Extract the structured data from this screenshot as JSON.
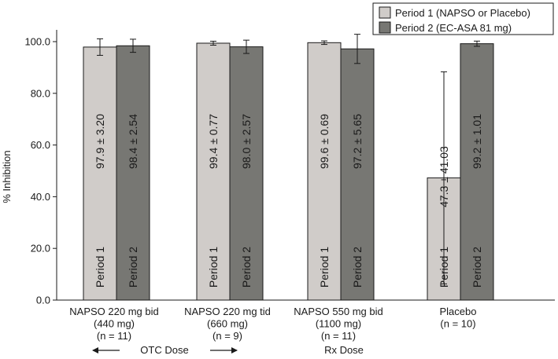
{
  "chart_data": {
    "type": "bar",
    "ylabel": "% Inhibition",
    "ylim": [
      0,
      100
    ],
    "yticks": [
      "0.0",
      "20.0",
      "40.0",
      "60.0",
      "80.0",
      "100.0"
    ],
    "grid": false,
    "legend_position": "top-right",
    "categories": [
      [
        "NAPSO 220 mg bid",
        "(440 mg)",
        "(n = 11)"
      ],
      [
        "NAPSO 220 mg tid",
        "(660 mg)",
        "(n = 9)"
      ],
      [
        "NAPSO 550 mg bid",
        "(1100 mg)",
        "(n = 11)"
      ],
      [
        "Placebo",
        "(n = 10)"
      ]
    ],
    "series": [
      {
        "name": "Period 1 (NAPSO or Placebo)",
        "bar_label": "Period 1",
        "color": "#d0ccc9",
        "values": [
          97.9,
          99.4,
          99.6,
          47.3
        ],
        "errors": [
          3.2,
          0.77,
          0.69,
          41.03
        ],
        "value_labels": [
          "97.9 ± 3.20",
          "99.4 ± 0.77",
          "99.6 ± 0.69",
          "47.3 ± 41.03"
        ]
      },
      {
        "name": "Period 2 (EC-ASA 81 mg)",
        "bar_label": "Period 2",
        "color": "#777773",
        "values": [
          98.4,
          98.0,
          97.2,
          99.2
        ],
        "errors": [
          2.54,
          2.57,
          5.65,
          1.01
        ],
        "value_labels": [
          "98.4 ± 2.54",
          "98.0 ± 2.57",
          "97.2 ± 5.65",
          "99.2 ± 1.01"
        ]
      }
    ],
    "annotations": {
      "otc_dose": "OTC Dose",
      "rx_dose": "Rx Dose"
    }
  }
}
